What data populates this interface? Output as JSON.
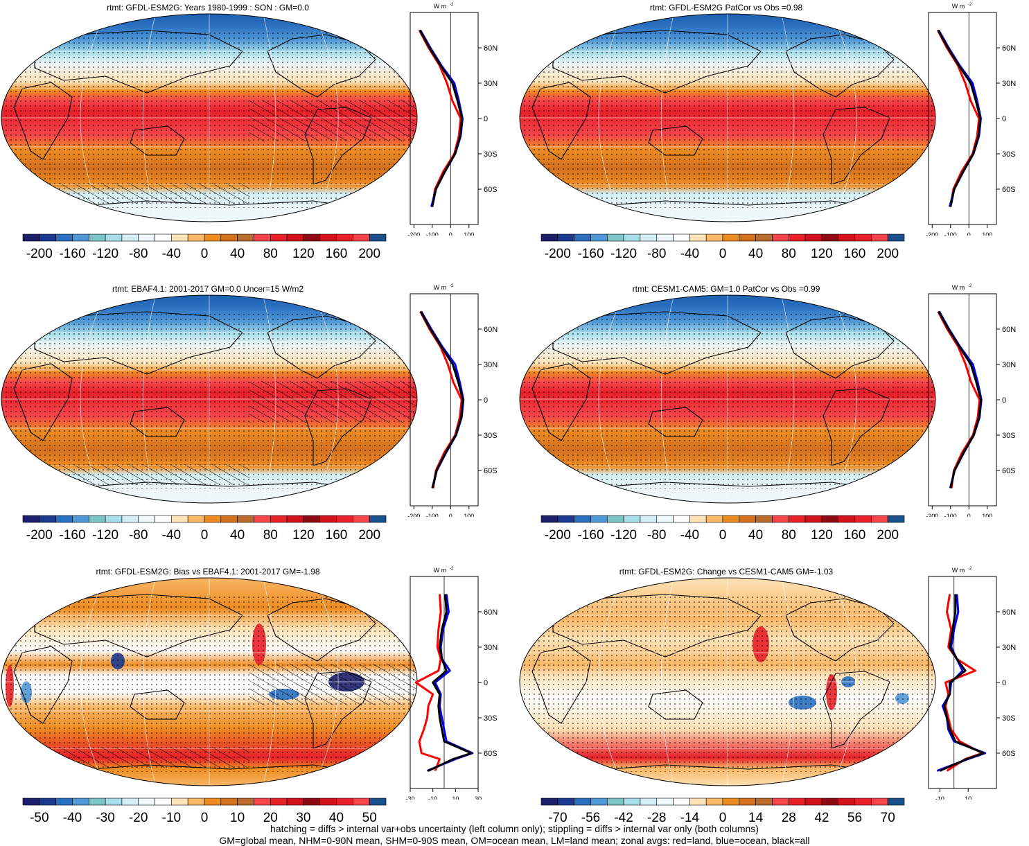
{
  "panels": [
    {
      "id": "p1",
      "title": "rtmt: GFDL-ESM2G: Years 1980-1999 : SON : GM=0.0",
      "kind": "abs",
      "hatch": true,
      "colorbar_labels": [
        "-200",
        "-160",
        "-120",
        "-80",
        "-40",
        "0",
        "40",
        "80",
        "120",
        "160",
        "200"
      ],
      "zonal_unit": "W m",
      "zonal_unit_sup": "-2",
      "zonal_xticks": [
        "-200",
        "-100",
        "0",
        "100"
      ],
      "zonal_xrange": [
        -220,
        150
      ],
      "lat_labels": [
        "60N",
        "30N",
        "0",
        "30S",
        "60S"
      ]
    },
    {
      "id": "p2",
      "title": "rtmt: GFDL-ESM2G PatCor vs Obs =0.98",
      "kind": "abs",
      "hatch": false,
      "colorbar_labels": [
        "-200",
        "-160",
        "-120",
        "-80",
        "-40",
        "0",
        "40",
        "80",
        "120",
        "160",
        "200"
      ],
      "zonal_unit": "W m",
      "zonal_unit_sup": "-2",
      "zonal_xticks": [
        "-200",
        "-100",
        "0",
        "100"
      ],
      "zonal_xrange": [
        -220,
        150
      ],
      "lat_labels": [
        "60N",
        "30N",
        "0",
        "30S",
        "60S"
      ]
    },
    {
      "id": "p3",
      "title": "rtmt: EBAF4.1: 2001-2017 GM=0.0 Uncer=15 W/m2",
      "kind": "abs",
      "hatch": true,
      "colorbar_labels": [
        "-200",
        "-160",
        "-120",
        "-80",
        "-40",
        "0",
        "40",
        "80",
        "120",
        "160",
        "200"
      ],
      "zonal_unit": "W m",
      "zonal_unit_sup": "-2",
      "zonal_xticks": [
        "-200",
        "-100",
        "0",
        "100"
      ],
      "zonal_xrange": [
        -220,
        150
      ],
      "lat_labels": [
        "60N",
        "30N",
        "0",
        "30S",
        "60S"
      ]
    },
    {
      "id": "p4",
      "title": "rtmt: CESM1-CAM5: GM=1.0 PatCor vs Obs =0.99",
      "kind": "abs",
      "hatch": false,
      "colorbar_labels": [
        "-200",
        "-160",
        "-120",
        "-80",
        "-40",
        "0",
        "40",
        "80",
        "120",
        "160",
        "200"
      ],
      "zonal_unit": "W m",
      "zonal_unit_sup": "-2",
      "zonal_xticks": [
        "-200",
        "-100",
        "0",
        "100"
      ],
      "zonal_xrange": [
        -220,
        150
      ],
      "lat_labels": [
        "60N",
        "30N",
        "0",
        "30S",
        "60S"
      ]
    },
    {
      "id": "p5",
      "title": "rtmt: GFDL-ESM2G: Bias vs EBAF4.1: 2001-2017  GM=-1.98",
      "kind": "bias",
      "hatch": true,
      "colorbar_labels": [
        "-50",
        "-40",
        "-30",
        "-20",
        "-10",
        "0",
        "10",
        "20",
        "30",
        "40",
        "50"
      ],
      "zonal_unit": "W m",
      "zonal_unit_sup": "-2",
      "zonal_xticks": [
        "-30",
        "-10",
        "10",
        "30"
      ],
      "zonal_xrange": [
        -30,
        30
      ],
      "lat_labels": [
        "60N",
        "30N",
        "0",
        "30S",
        "60S"
      ]
    },
    {
      "id": "p6",
      "title": "rtmt: GFDL-ESM2G: Change vs CESM1-CAM5 GM=-1.03",
      "kind": "change",
      "hatch": false,
      "colorbar_labels": [
        "-70",
        "-56",
        "-42",
        "-28",
        "-14",
        "0",
        "14",
        "28",
        "42",
        "56",
        "70"
      ],
      "zonal_unit": "W m",
      "zonal_unit_sup": "-2",
      "zonal_xticks": [
        "-10",
        "10"
      ],
      "zonal_xrange": [
        -18,
        30
      ],
      "lat_labels": [
        "60N",
        "30N",
        "0",
        "30S",
        "60S"
      ]
    }
  ],
  "colors": {
    "palette": [
      "#1c1f6b",
      "#1b3a8f",
      "#2a6fc0",
      "#4f97d6",
      "#7cc4c8",
      "#a7dde8",
      "#d3eef5",
      "#eef7f9",
      "#ffffff",
      "#fde3b8",
      "#f9b768",
      "#ed8c22",
      "#d3711f",
      "#b96b2e",
      "#f5444b",
      "#e7202a",
      "#d0101b",
      "#8f0a12",
      "#d3101b",
      "#e7202a",
      "#f5444b",
      "#194f8a"
    ],
    "land_line": "#000000",
    "red_line": "#ff0000",
    "blue_line": "#0000ff",
    "black_line": "#000000"
  },
  "chart_data": [
    {
      "type": "heatmap",
      "title": "rtmt: GFDL-ESM2G: Years 1980-1999 : SON : GM=0.0",
      "zonal_series": [
        {
          "name": "land",
          "lat": [
            -75,
            -60,
            -45,
            -30,
            -15,
            0,
            15,
            30,
            45,
            60,
            75
          ],
          "values": [
            -100,
            -85,
            -40,
            20,
            45,
            55,
            10,
            -20,
            -60,
            -120,
            -170
          ]
        },
        {
          "name": "ocean",
          "lat": [
            -75,
            -60,
            -45,
            -30,
            -15,
            0,
            15,
            30,
            45,
            60,
            75
          ],
          "values": [
            -105,
            -80,
            -30,
            25,
            55,
            65,
            45,
            20,
            -50,
            -110,
            -165
          ]
        },
        {
          "name": "all",
          "lat": [
            -75,
            -60,
            -45,
            -30,
            -15,
            0,
            15,
            30,
            45,
            60,
            75
          ],
          "values": [
            -100,
            -80,
            -32,
            24,
            52,
            62,
            38,
            10,
            -55,
            -115,
            -168
          ]
        }
      ]
    },
    {
      "type": "heatmap",
      "title": "rtmt: GFDL-ESM2G PatCor vs Obs =0.98",
      "zonal_series": [
        {
          "name": "land",
          "lat": [
            -75,
            -60,
            -45,
            -30,
            -15,
            0,
            15,
            30,
            45,
            60,
            75
          ],
          "values": [
            -100,
            -85,
            -40,
            20,
            45,
            55,
            10,
            -20,
            -60,
            -120,
            -170
          ]
        },
        {
          "name": "ocean",
          "lat": [
            -75,
            -60,
            -45,
            -30,
            -15,
            0,
            15,
            30,
            45,
            60,
            75
          ],
          "values": [
            -105,
            -80,
            -30,
            25,
            55,
            65,
            45,
            20,
            -50,
            -110,
            -165
          ]
        },
        {
          "name": "all",
          "lat": [
            -75,
            -60,
            -45,
            -30,
            -15,
            0,
            15,
            30,
            45,
            60,
            75
          ],
          "values": [
            -100,
            -80,
            -32,
            24,
            52,
            62,
            38,
            10,
            -55,
            -115,
            -168
          ]
        }
      ]
    },
    {
      "type": "heatmap",
      "title": "rtmt: EBAF4.1: 2001-2017 GM=0.0 Uncer=15 W/m2",
      "zonal_series": [
        {
          "name": "land",
          "lat": [
            -75,
            -60,
            -45,
            -30,
            -15,
            0,
            15,
            30,
            45,
            60,
            75
          ],
          "values": [
            -95,
            -80,
            -35,
            25,
            50,
            60,
            15,
            -15,
            -55,
            -115,
            -165
          ]
        },
        {
          "name": "ocean",
          "lat": [
            -75,
            -60,
            -45,
            -30,
            -15,
            0,
            15,
            30,
            45,
            60,
            75
          ],
          "values": [
            -100,
            -75,
            -25,
            30,
            60,
            70,
            50,
            25,
            -45,
            -105,
            -160
          ]
        },
        {
          "name": "all",
          "lat": [
            -75,
            -60,
            -45,
            -30,
            -15,
            0,
            15,
            30,
            45,
            60,
            75
          ],
          "values": [
            -98,
            -76,
            -28,
            28,
            57,
            67,
            42,
            12,
            -50,
            -110,
            -163
          ]
        }
      ]
    },
    {
      "type": "heatmap",
      "title": "rtmt: CESM1-CAM5: GM=1.0 PatCor vs Obs =0.99",
      "zonal_series": [
        {
          "name": "land",
          "lat": [
            -75,
            -60,
            -45,
            -30,
            -15,
            0,
            15,
            30,
            45,
            60,
            75
          ],
          "values": [
            -95,
            -82,
            -38,
            22,
            48,
            58,
            12,
            -18,
            -58,
            -118,
            -168
          ]
        },
        {
          "name": "ocean",
          "lat": [
            -75,
            -60,
            -45,
            -30,
            -15,
            0,
            15,
            30,
            45,
            60,
            75
          ],
          "values": [
            -102,
            -78,
            -28,
            27,
            58,
            68,
            48,
            22,
            -48,
            -108,
            -162
          ]
        },
        {
          "name": "all",
          "lat": [
            -75,
            -60,
            -45,
            -30,
            -15,
            0,
            15,
            30,
            45,
            60,
            75
          ],
          "values": [
            -100,
            -78,
            -30,
            26,
            55,
            65,
            40,
            11,
            -52,
            -112,
            -165
          ]
        }
      ]
    },
    {
      "type": "heatmap",
      "title": "rtmt: GFDL-ESM2G: Bias vs EBAF4.1: 2001-2017  GM=-1.98",
      "zonal_series": [
        {
          "name": "land",
          "lat": [
            -75,
            -65,
            -60,
            -50,
            -40,
            -30,
            -20,
            -10,
            0,
            10,
            20,
            30,
            45,
            60,
            75
          ],
          "values": [
            -8,
            -4,
            -20,
            -22,
            -18,
            -15,
            -14,
            -10,
            -25,
            -5,
            -3,
            -6,
            -5,
            -3,
            -4
          ]
        },
        {
          "name": "ocean",
          "lat": [
            -75,
            -65,
            -60,
            -50,
            -40,
            -30,
            -20,
            -10,
            0,
            10,
            20,
            30,
            45,
            60,
            75
          ],
          "values": [
            -15,
            10,
            25,
            2,
            0,
            -2,
            -4,
            -3,
            -8,
            5,
            -2,
            -3,
            -1,
            4,
            2
          ]
        },
        {
          "name": "all",
          "lat": [
            -75,
            -65,
            -60,
            -50,
            -40,
            -30,
            -20,
            -10,
            0,
            10,
            20,
            30,
            45,
            60,
            75
          ],
          "values": [
            -14,
            8,
            24,
            0,
            -2,
            -4,
            -5,
            -4,
            -10,
            2,
            -2,
            -4,
            -2,
            2,
            1
          ]
        }
      ]
    },
    {
      "type": "heatmap",
      "title": "rtmt: GFDL-ESM2G: Change vs CESM1-CAM5 GM=-1.03",
      "zonal_series": [
        {
          "name": "land",
          "lat": [
            -75,
            -65,
            -60,
            -50,
            -40,
            -30,
            -20,
            -10,
            0,
            10,
            20,
            30,
            45,
            60,
            75
          ],
          "values": [
            -5,
            8,
            20,
            4,
            -2,
            -4,
            -6,
            -4,
            -6,
            15,
            2,
            -4,
            -2,
            -5,
            -3
          ]
        },
        {
          "name": "ocean",
          "lat": [
            -75,
            -65,
            -60,
            -50,
            -40,
            -30,
            -20,
            -10,
            0,
            10,
            20,
            30,
            45,
            60,
            75
          ],
          "values": [
            -12,
            10,
            22,
            0,
            -4,
            -5,
            -8,
            -3,
            -2,
            6,
            2,
            -2,
            0,
            3,
            2
          ]
        },
        {
          "name": "all",
          "lat": [
            -75,
            -65,
            -60,
            -50,
            -40,
            -30,
            -20,
            -10,
            0,
            10,
            20,
            30,
            45,
            60,
            75
          ],
          "values": [
            -10,
            9,
            21,
            1,
            -3,
            -5,
            -7,
            -3,
            -3,
            8,
            2,
            -3,
            -1,
            1,
            1
          ]
        }
      ]
    }
  ],
  "footer": {
    "line1": "hatching = diffs > internal var+obs uncertainty (left column only); stippling = diffs > internal var only (both columns)",
    "line2": "GM=global mean, NHM=0-90N mean, SHM=0-90S mean, OM=ocean mean, LM=land mean; zonal avgs: red=land, blue=ocean, black=all"
  }
}
